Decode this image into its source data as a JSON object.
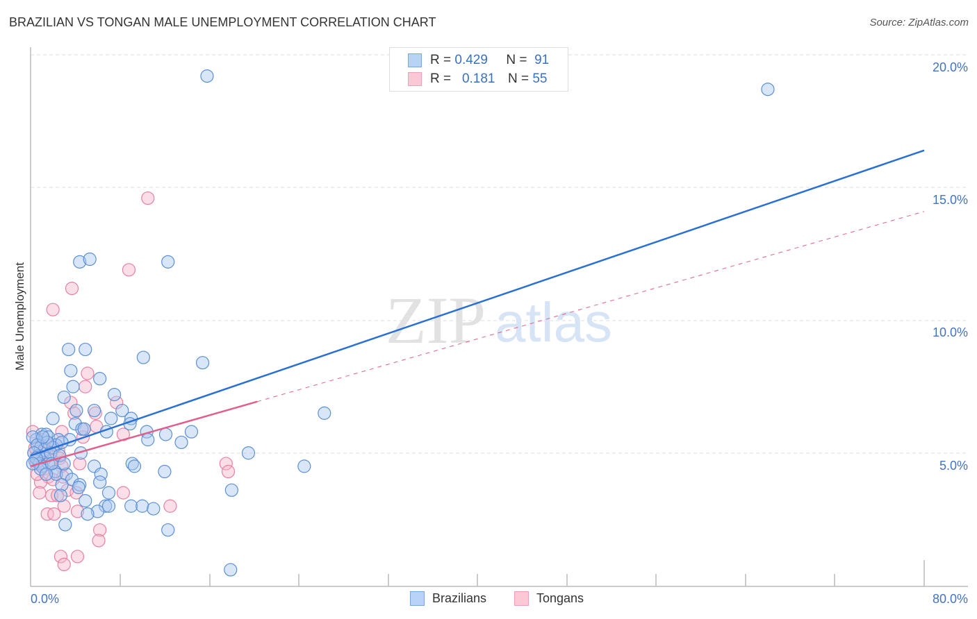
{
  "header": {
    "title": "BRAZILIAN VS TONGAN MALE UNEMPLOYMENT CORRELATION CHART",
    "source": "Source: ZipAtlas.com"
  },
  "legend_top": {
    "rows": [
      {
        "series": "Brazilians",
        "r_label": "R =",
        "r_value": "0.429",
        "n_label": "N =",
        "n_value": "91"
      },
      {
        "series": "Tongans",
        "r_label": "R =",
        "r_value": "0.181",
        "n_label": "N =",
        "n_value": "55"
      }
    ]
  },
  "legend_bottom": {
    "items": [
      {
        "label": "Brazilians"
      },
      {
        "label": "Tongans"
      }
    ]
  },
  "axes": {
    "ylabel": "Male Unemployment",
    "y_ticks": [
      "20.0%",
      "15.0%",
      "10.0%",
      "5.0%"
    ],
    "x_min_label": "0.0%",
    "x_max_label": "80.0%"
  },
  "watermark": {
    "zip": "ZIP",
    "atlas": "atlas"
  },
  "colors": {
    "brazilians_fill": "#a8c8f0",
    "brazilians_stroke": "#5b8fd6",
    "brazilians_line": "#2a6fd4",
    "tongans_fill": "#f7b8cb",
    "tongans_stroke": "#e8809f",
    "tongans_line": "#e0608a",
    "tick_text": "#4472c4"
  },
  "chart_data": {
    "type": "scatter",
    "title": "BRAZILIAN VS TONGAN MALE UNEMPLOYMENT CORRELATION CHART",
    "xlabel": "",
    "ylabel": "Male Unemployment",
    "xlim": [
      0,
      80
    ],
    "ylim": [
      0,
      20
    ],
    "x_ticks": [
      "0.0%",
      "80.0%"
    ],
    "y_ticks": [
      "5.0%",
      "10.0%",
      "15.0%",
      "20.0%"
    ],
    "grid": "horizontal dashed",
    "legend_position": "top-center and bottom",
    "series": [
      {
        "name": "Brazilians",
        "r": 0.429,
        "n": 91,
        "trend": {
          "x": [
            0,
            80
          ],
          "y": [
            4.9,
            16.4
          ],
          "style": "solid"
        },
        "points": [
          [
            15.8,
            19.2
          ],
          [
            66.0,
            18.7
          ],
          [
            4.4,
            12.2
          ],
          [
            5.3,
            12.3
          ],
          [
            12.3,
            12.2
          ],
          [
            3.4,
            8.9
          ],
          [
            4.9,
            8.9
          ],
          [
            10.1,
            8.6
          ],
          [
            15.4,
            8.4
          ],
          [
            3.6,
            8.1
          ],
          [
            6.2,
            7.8
          ],
          [
            3.8,
            7.5
          ],
          [
            7.5,
            7.2
          ],
          [
            3.0,
            7.1
          ],
          [
            4.1,
            6.6
          ],
          [
            5.7,
            6.6
          ],
          [
            8.2,
            6.6
          ],
          [
            26.3,
            6.5
          ],
          [
            2.0,
            6.3
          ],
          [
            7.2,
            6.3
          ],
          [
            9.0,
            6.3
          ],
          [
            4.0,
            6.1
          ],
          [
            8.9,
            6.1
          ],
          [
            4.6,
            5.9
          ],
          [
            4.8,
            5.9
          ],
          [
            6.8,
            5.8
          ],
          [
            10.4,
            5.8
          ],
          [
            14.4,
            5.8
          ],
          [
            1.0,
            5.7
          ],
          [
            1.4,
            5.7
          ],
          [
            12.1,
            5.7
          ],
          [
            1.6,
            5.6
          ],
          [
            2.5,
            5.5
          ],
          [
            3.5,
            5.5
          ],
          [
            10.5,
            5.5
          ],
          [
            13.5,
            5.4
          ],
          [
            0.5,
            5.5
          ],
          [
            2.3,
            5.3
          ],
          [
            0.9,
            5.2
          ],
          [
            1.2,
            5.1
          ],
          [
            2.0,
            5.2
          ],
          [
            4.5,
            5.0
          ],
          [
            19.5,
            5.0
          ],
          [
            0.7,
            4.9
          ],
          [
            1.3,
            4.8
          ],
          [
            0.4,
            4.7
          ],
          [
            0.8,
            4.6
          ],
          [
            1.6,
            4.6
          ],
          [
            9.1,
            4.6
          ],
          [
            5.7,
            4.5
          ],
          [
            9.3,
            4.5
          ],
          [
            24.5,
            4.5
          ],
          [
            1.0,
            4.5
          ],
          [
            2.2,
            4.3
          ],
          [
            2.3,
            4.2
          ],
          [
            6.3,
            4.2
          ],
          [
            12.0,
            4.3
          ],
          [
            3.2,
            4.2
          ],
          [
            3.7,
            4.0
          ],
          [
            6.2,
            3.9
          ],
          [
            2.8,
            3.8
          ],
          [
            4.4,
            3.8
          ],
          [
            4.3,
            3.7
          ],
          [
            7.0,
            3.5
          ],
          [
            2.7,
            3.4
          ],
          [
            18.0,
            3.6
          ],
          [
            4.9,
            3.2
          ],
          [
            9.0,
            3.0
          ],
          [
            10.0,
            3.0
          ],
          [
            6.7,
            3.0
          ],
          [
            7.0,
            3.0
          ],
          [
            11.0,
            2.9
          ],
          [
            6.0,
            2.8
          ],
          [
            5.1,
            2.7
          ],
          [
            3.1,
            2.3
          ],
          [
            12.3,
            2.1
          ],
          [
            17.9,
            0.6
          ],
          [
            0.2,
            5.6
          ],
          [
            0.6,
            5.3
          ],
          [
            1.8,
            5.0
          ],
          [
            0.3,
            5.0
          ],
          [
            1.5,
            5.4
          ],
          [
            2.8,
            5.4
          ],
          [
            1.1,
            5.6
          ],
          [
            0.5,
            4.8
          ],
          [
            0.9,
            4.4
          ],
          [
            1.9,
            4.6
          ],
          [
            2.6,
            4.9
          ],
          [
            0.2,
            4.6
          ],
          [
            1.4,
            4.2
          ],
          [
            3.0,
            4.6
          ]
        ]
      },
      {
        "name": "Tongans",
        "r": 0.181,
        "n": 55,
        "trend": {
          "x": [
            0,
            80
          ],
          "y": [
            4.5,
            14.1
          ],
          "style": "solid to ~20%, dashed beyond"
        },
        "points": [
          [
            10.5,
            14.6
          ],
          [
            8.8,
            11.9
          ],
          [
            3.7,
            11.2
          ],
          [
            2.0,
            10.4
          ],
          [
            5.1,
            8.0
          ],
          [
            4.9,
            7.5
          ],
          [
            3.6,
            6.9
          ],
          [
            7.7,
            6.9
          ],
          [
            3.9,
            6.5
          ],
          [
            5.8,
            6.5
          ],
          [
            5.9,
            6.0
          ],
          [
            4.8,
            5.9
          ],
          [
            0.2,
            5.8
          ],
          [
            2.8,
            5.8
          ],
          [
            8.3,
            5.7
          ],
          [
            4.7,
            5.6
          ],
          [
            1.0,
            5.5
          ],
          [
            1.5,
            5.4
          ],
          [
            2.2,
            5.3
          ],
          [
            1.3,
            5.1
          ],
          [
            2.5,
            5.1
          ],
          [
            0.3,
            5.0
          ],
          [
            0.8,
            4.9
          ],
          [
            2.6,
            4.8
          ],
          [
            1.9,
            4.7
          ],
          [
            0.5,
            4.6
          ],
          [
            4.4,
            4.6
          ],
          [
            17.5,
            4.6
          ],
          [
            2.8,
            4.5
          ],
          [
            1.2,
            4.4
          ],
          [
            17.7,
            4.3
          ],
          [
            1.6,
            4.1
          ],
          [
            2.9,
            4.1
          ],
          [
            0.9,
            3.9
          ],
          [
            3.3,
            3.6
          ],
          [
            0.8,
            3.5
          ],
          [
            4.1,
            3.5
          ],
          [
            8.3,
            3.5
          ],
          [
            1.9,
            3.4
          ],
          [
            2.4,
            3.4
          ],
          [
            3.0,
            3.0
          ],
          [
            12.5,
            3.0
          ],
          [
            4.2,
            2.8
          ],
          [
            1.5,
            2.7
          ],
          [
            2.1,
            2.7
          ],
          [
            6.2,
            2.1
          ],
          [
            6.1,
            1.7
          ],
          [
            2.7,
            1.1
          ],
          [
            4.2,
            1.1
          ],
          [
            3.0,
            0.8
          ],
          [
            0.4,
            5.2
          ],
          [
            0.7,
            4.7
          ],
          [
            1.1,
            5.0
          ],
          [
            0.6,
            4.2
          ],
          [
            2.0,
            4.0
          ]
        ]
      }
    ]
  }
}
